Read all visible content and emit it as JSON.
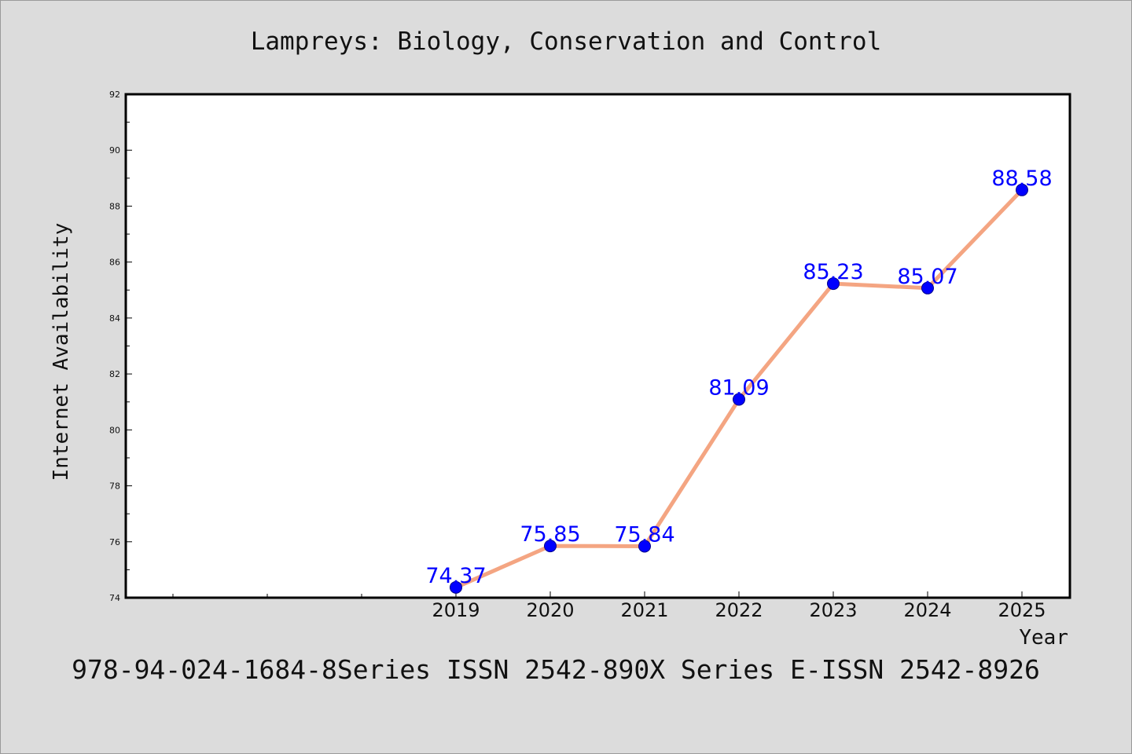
{
  "chart_data": {
    "type": "line",
    "title": "Lampreys: Biology, Conservation and Control",
    "xlabel": "Year",
    "ylabel": "Internet Availability",
    "x": [
      "2019",
      "2020",
      "2021",
      "2022",
      "2023",
      "2024",
      "2025"
    ],
    "series": [
      {
        "values": [
          74.37,
          75.85,
          75.84,
          81.09,
          85.23,
          85.07,
          88.58
        ]
      }
    ],
    "data_labels": [
      "74.37",
      "75.85",
      "75.84",
      "81.09",
      "85.23",
      "85.07",
      "88.58"
    ],
    "ylim": [
      74,
      92
    ],
    "yticks": [
      74,
      76,
      78,
      80,
      82,
      84,
      86,
      88,
      90,
      92
    ],
    "grid": false,
    "legend": "none",
    "colors": {
      "line": "#f4a582",
      "marker": "#0000ff",
      "data_label": "#0000ff",
      "background": "#dcdcdc",
      "plot_area": "#ffffff"
    }
  },
  "footer": {
    "text": "978-94-024-1684-8Series ISSN 2542-890X Series E-ISSN 2542-8926"
  }
}
